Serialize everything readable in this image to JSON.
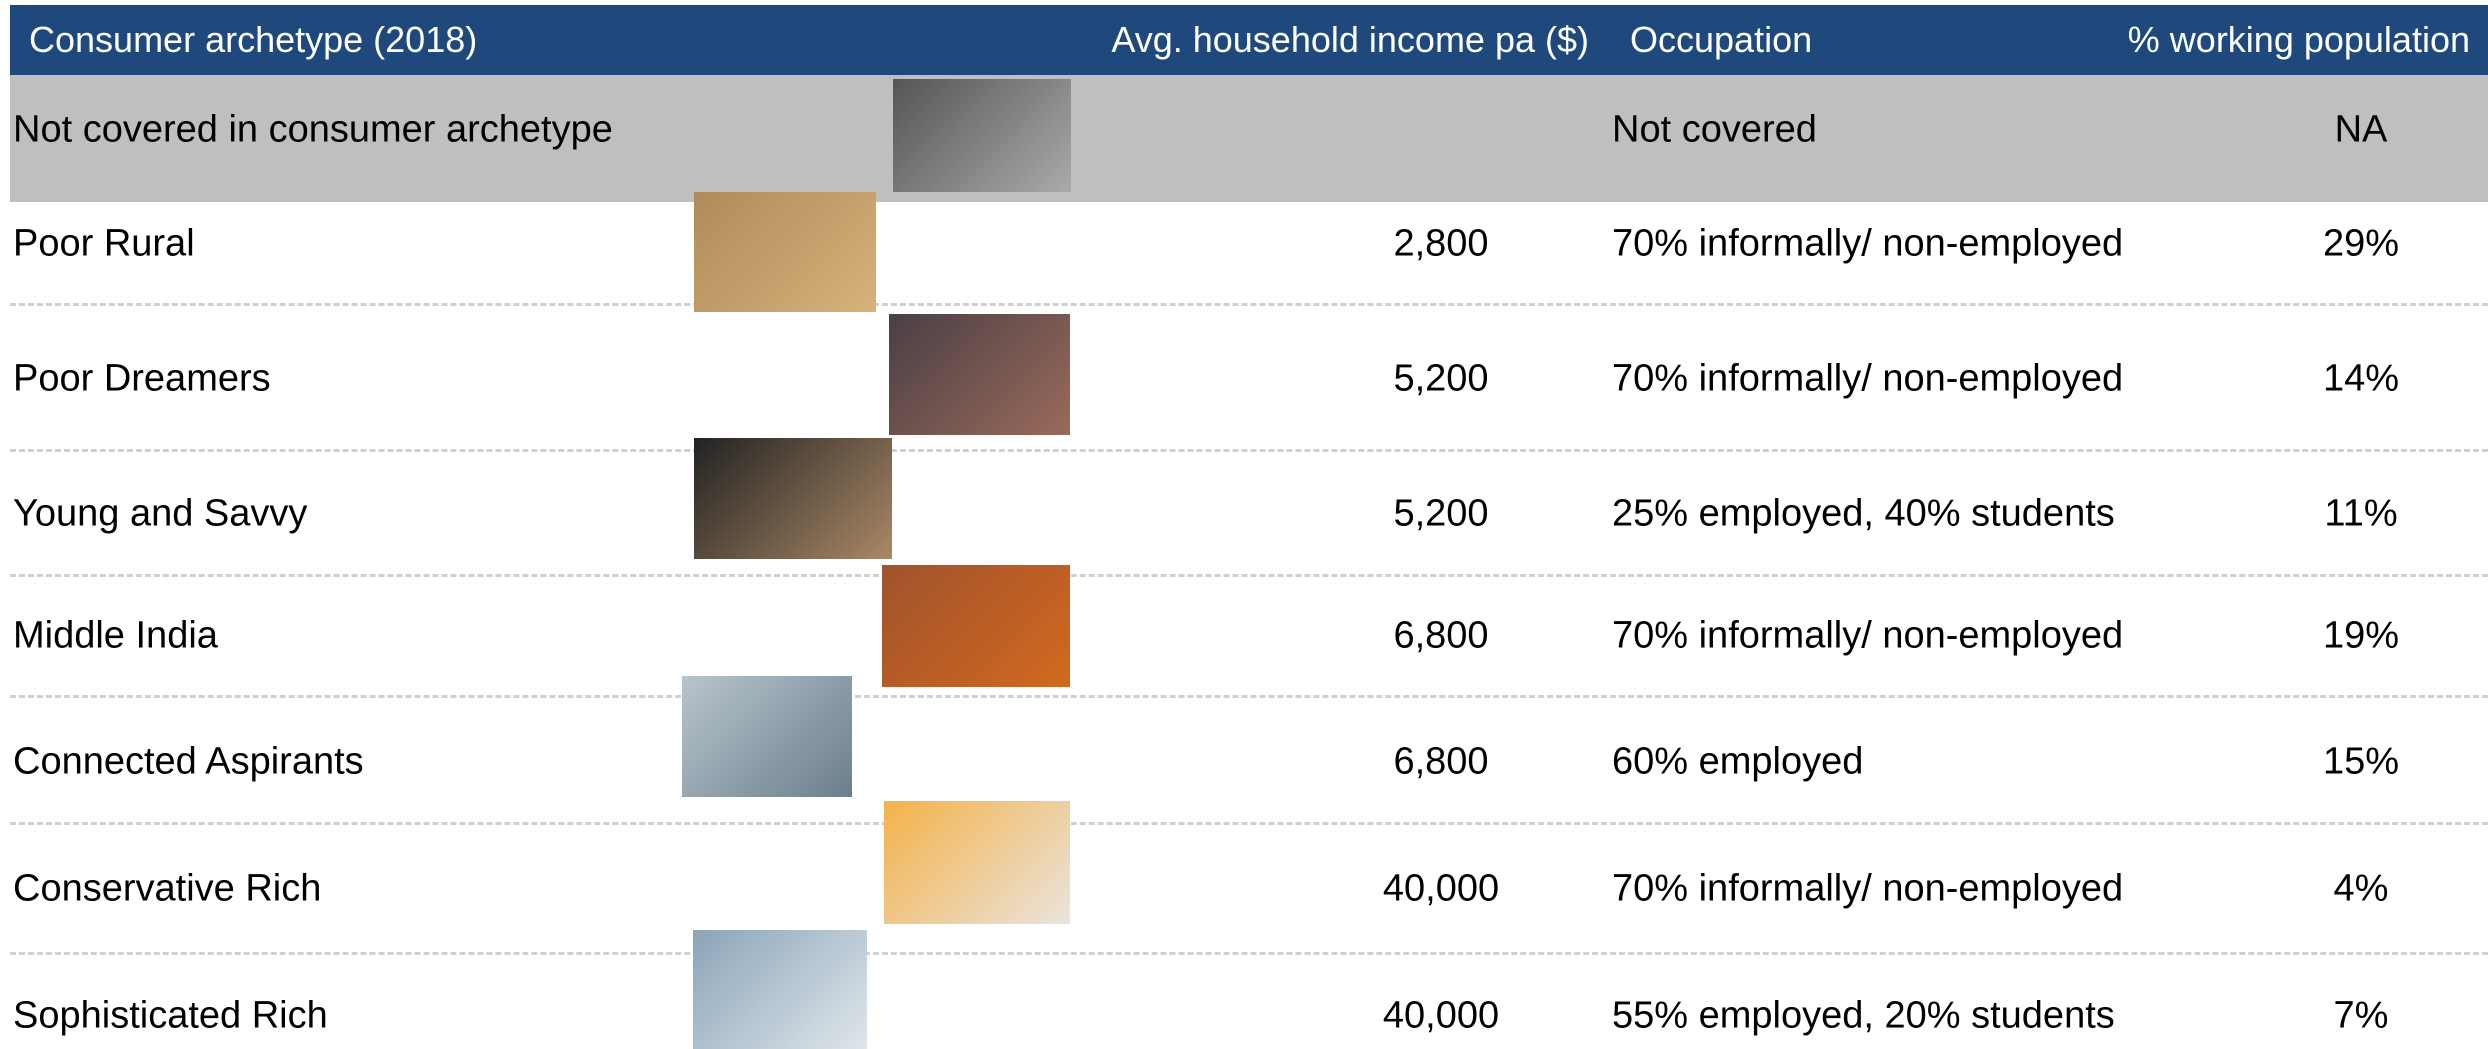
{
  "header": [
    "Consumer archetype (2018)",
    "Avg. household income pa ($)",
    "Occupation",
    "% working population"
  ],
  "rows": [
    {
      "name": "Not covered in consumer archetype",
      "occupation": "Not covered",
      "share": "NA"
    },
    {
      "name": "Poor Rural",
      "income": "2,800",
      "occupation": "70% informally/ non-employed",
      "share": "29%"
    },
    {
      "name": "Poor Dreamers",
      "income": "5,200",
      "occupation": "70% informally/ non-employed",
      "share": "14%"
    },
    {
      "name": "Young and Savvy",
      "income": "5,200",
      "occupation": "25% employed, 40% students",
      "share": "11%"
    },
    {
      "name": "Middle India",
      "income": "6,800",
      "occupation": "70% informally/ non-employed",
      "share": "19%"
    },
    {
      "name": "Connected Aspirants",
      "income": "6,800",
      "occupation": "60% employed",
      "share": "15%"
    },
    {
      "name": "Conservative Rich",
      "income": "40,000",
      "occupation": "70% informally/ non-employed",
      "share": "4%"
    },
    {
      "name": "Sophisticated Rich",
      "income": "40,000",
      "occupation": "55% employed, 20% students",
      "share": "7%"
    }
  ]
}
